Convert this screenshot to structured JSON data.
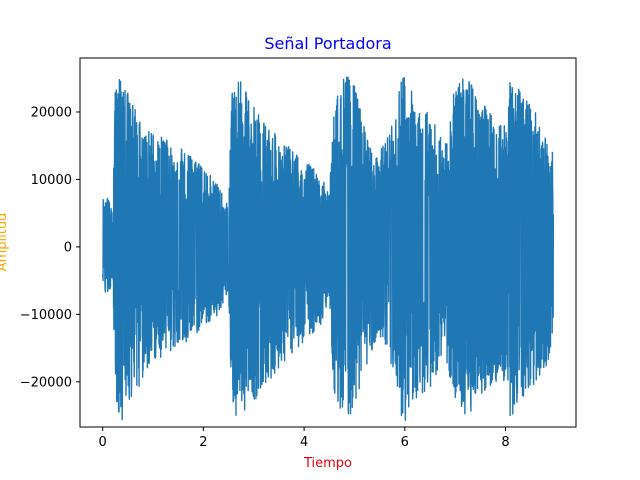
{
  "chart_data": {
    "type": "line",
    "title": "Señal Portadora",
    "xlabel": "Tiempo",
    "ylabel": "Amplitud",
    "xlim": [
      -0.45,
      9.4
    ],
    "ylim": [
      -26700,
      28000
    ],
    "xticks": [
      0,
      2,
      4,
      6,
      8
    ],
    "xtick_labels": [
      "0",
      "2",
      "4",
      "6",
      "8"
    ],
    "yticks": [
      -20000,
      -10000,
      0,
      10000,
      20000
    ],
    "ytick_labels": [
      "−20000",
      "−10000",
      "0",
      "10000",
      "20000"
    ],
    "grid": false,
    "legend": "none",
    "series": [
      {
        "color": "#1f77b4",
        "x_start": 0,
        "x_end": 8.95,
        "envelope": {
          "x": [
            0.0,
            0.1,
            0.2,
            0.25,
            0.3,
            0.4,
            0.5,
            0.8,
            1.0,
            1.5,
            2.0,
            2.3,
            2.5,
            2.55,
            2.6,
            2.7,
            3.0,
            3.5,
            4.0,
            4.3,
            4.5,
            4.6,
            4.8,
            5.0,
            5.3,
            5.5,
            5.8,
            5.9,
            6.0,
            6.2,
            6.5,
            6.8,
            7.0,
            7.2,
            7.5,
            7.8,
            8.0,
            8.1,
            8.2,
            8.4,
            8.6,
            8.8,
            8.95
          ],
          "upper": [
            7000,
            7500,
            5000,
            23000,
            26000,
            26000,
            23000,
            18000,
            17000,
            15000,
            12000,
            9000,
            6000,
            20000,
            26000,
            25000,
            21000,
            16000,
            13000,
            11000,
            8000,
            21000,
            26000,
            24000,
            15000,
            14000,
            19000,
            25000,
            26000,
            22000,
            20000,
            15000,
            24000,
            26000,
            22000,
            19000,
            19000,
            26000,
            24000,
            22000,
            20000,
            16000,
            14000
          ],
          "lower": [
            -6000,
            -7500,
            -5000,
            -22000,
            -26000,
            -26000,
            -23000,
            -20000,
            -17000,
            -15000,
            -12000,
            -10000,
            -6500,
            -20000,
            -26000,
            -25000,
            -23000,
            -18000,
            -14000,
            -12000,
            -9000,
            -22000,
            -26000,
            -24000,
            -16000,
            -14000,
            -20000,
            -25000,
            -26000,
            -23000,
            -21000,
            -16000,
            -24000,
            -26000,
            -22000,
            -20000,
            -20000,
            -26000,
            -24000,
            -22000,
            -20000,
            -18000,
            -14000
          ]
        }
      }
    ]
  }
}
